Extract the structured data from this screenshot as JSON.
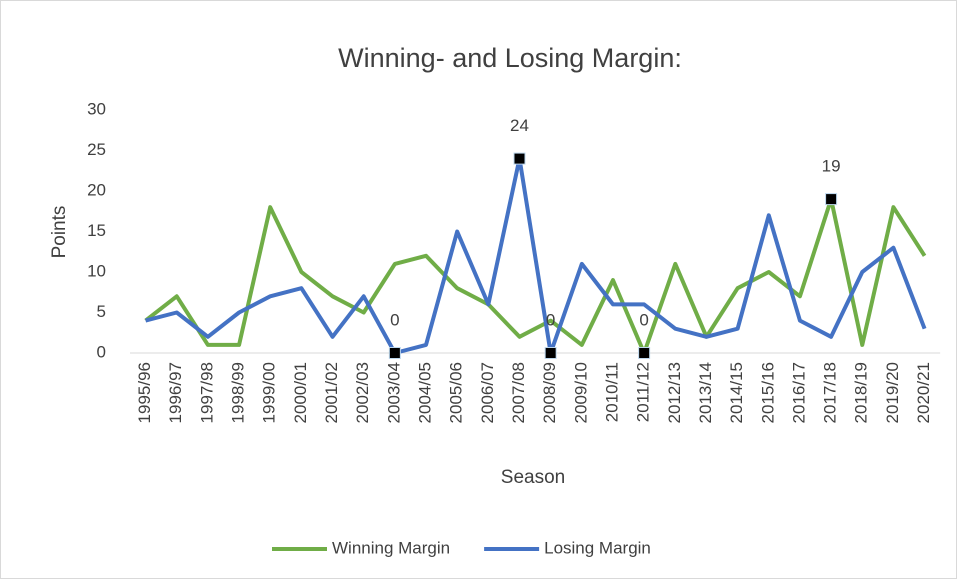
{
  "chart_data": {
    "type": "line",
    "title": "Winning- and Losing Margin:",
    "x_label": "Season",
    "y_label": "Points",
    "categories": [
      "1995/96",
      "1996/97",
      "1997/98",
      "1998/99",
      "1999/00",
      "2000/01",
      "2001/02",
      "2002/03",
      "2003/04",
      "2004/05",
      "2005/06",
      "2006/07",
      "2007/08",
      "2008/09",
      "2009/10",
      "2010/11",
      "2011/12",
      "2012/13",
      "2013/14",
      "2014/15",
      "2015/16",
      "2016/17",
      "2017/18",
      "2018/19",
      "2019/20",
      "2020/21"
    ],
    "series": [
      {
        "name": "Winning Margin",
        "color": "#70ad47",
        "values": [
          4,
          7,
          1,
          1,
          18,
          10,
          7,
          5,
          11,
          12,
          8,
          6,
          2,
          4,
          1,
          9,
          0,
          11,
          2,
          8,
          10,
          7,
          19,
          1,
          18,
          12
        ],
        "value_labels": [
          null,
          null,
          null,
          null,
          null,
          null,
          null,
          null,
          null,
          null,
          null,
          null,
          null,
          null,
          null,
          null,
          "0",
          null,
          null,
          null,
          null,
          null,
          "19",
          null,
          null,
          null
        ]
      },
      {
        "name": "Losing Margin",
        "color": "#4472c4",
        "values": [
          4,
          5,
          2,
          5,
          7,
          8,
          2,
          7,
          0,
          1,
          15,
          6,
          24,
          0,
          11,
          6,
          6,
          3,
          2,
          3,
          17,
          4,
          2,
          10,
          13,
          3
        ],
        "value_labels": [
          null,
          null,
          null,
          null,
          null,
          null,
          null,
          null,
          "0",
          null,
          null,
          null,
          "24",
          "0",
          null,
          null,
          null,
          null,
          null,
          null,
          null,
          null,
          null,
          null,
          null,
          null
        ]
      }
    ],
    "ylim": [
      0,
      30
    ],
    "yticks": [
      0,
      5,
      10,
      15,
      20,
      25,
      30
    ],
    "grid": false,
    "legend": "bottom"
  }
}
